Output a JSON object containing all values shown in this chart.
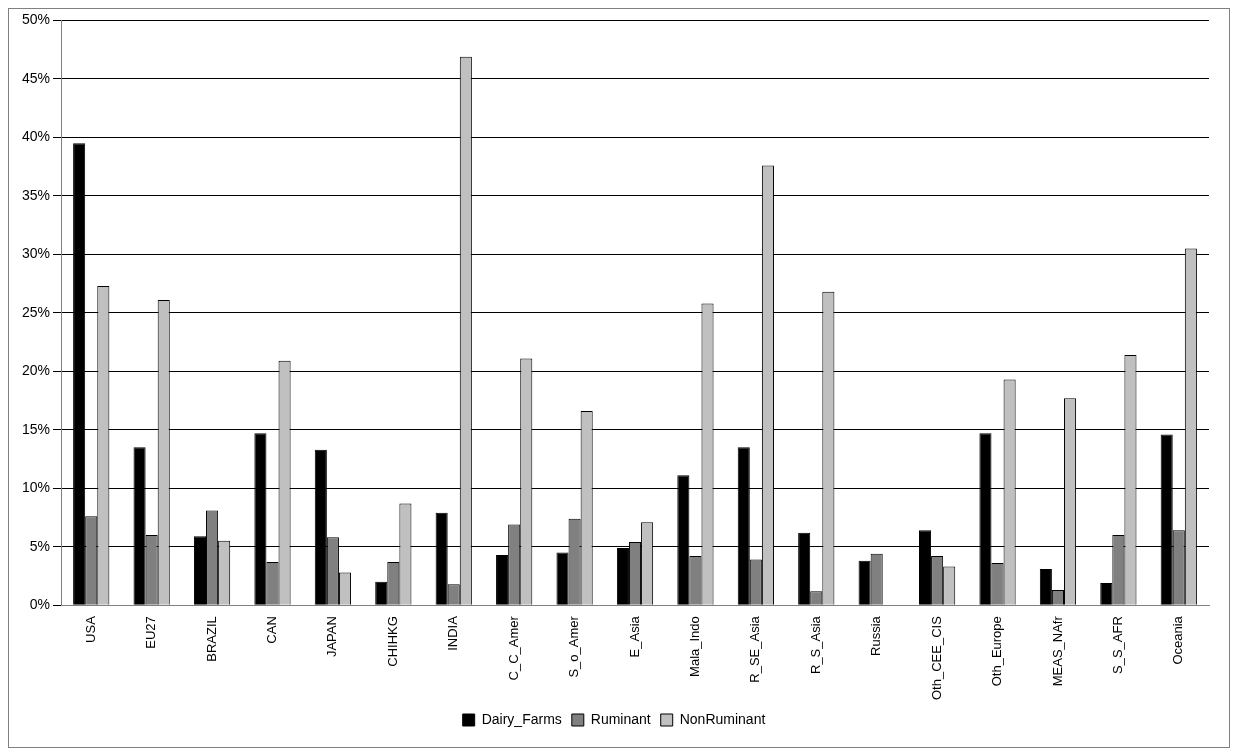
{
  "chart_data": {
    "type": "bar",
    "categories": [
      "USA",
      "EU27",
      "BRAZIL",
      "CAN",
      "JAPAN",
      "CHIHKG",
      "INDIA",
      "C_C_Amer",
      "S_o_Amer",
      "E_Asia",
      "Mala_Indo",
      "R_SE_Asia",
      "R_S_Asia",
      "Russia",
      "Oth_CEE_CIS",
      "Oth_Europe",
      "MEAS_NAfr",
      "S_S_AFR",
      "Oceania"
    ],
    "series": [
      {
        "name": "Dairy_Farms",
        "color": "#000000",
        "values": [
          39.5,
          13.5,
          5.9,
          14.7,
          13.3,
          2.0,
          7.9,
          4.3,
          4.5,
          4.9,
          11.1,
          13.5,
          6.2,
          3.8,
          6.4,
          14.7,
          3.1,
          1.9,
          14.6
        ]
      },
      {
        "name": "Ruminant",
        "color": "#808080",
        "values": [
          7.6,
          6.0,
          8.1,
          3.7,
          5.8,
          3.7,
          1.8,
          6.9,
          7.4,
          5.4,
          4.2,
          3.9,
          1.2,
          4.4,
          4.2,
          3.6,
          1.3,
          6.0,
          6.4
        ]
      },
      {
        "name": "NonRuminant",
        "color": "#c0c0c0",
        "values": [
          27.3,
          26.1,
          5.5,
          20.9,
          2.8,
          8.7,
          46.9,
          21.1,
          16.6,
          7.1,
          25.8,
          37.6,
          26.8,
          0,
          3.3,
          19.3,
          17.7,
          21.4,
          30.5
        ]
      }
    ],
    "ylim": [
      0,
      50
    ],
    "yticks": [
      {
        "value": 0,
        "label": "0%"
      },
      {
        "value": 5,
        "label": "5%"
      },
      {
        "value": 10,
        "label": "10%"
      },
      {
        "value": 15,
        "label": "15%"
      },
      {
        "value": 20,
        "label": "20%"
      },
      {
        "value": 25,
        "label": "25%"
      },
      {
        "value": 30,
        "label": "30%"
      },
      {
        "value": 35,
        "label": "35%"
      },
      {
        "value": 40,
        "label": "40%"
      },
      {
        "value": 45,
        "label": "45%"
      },
      {
        "value": 50,
        "label": "50%"
      }
    ],
    "grid": "y",
    "legend": "bottom"
  }
}
